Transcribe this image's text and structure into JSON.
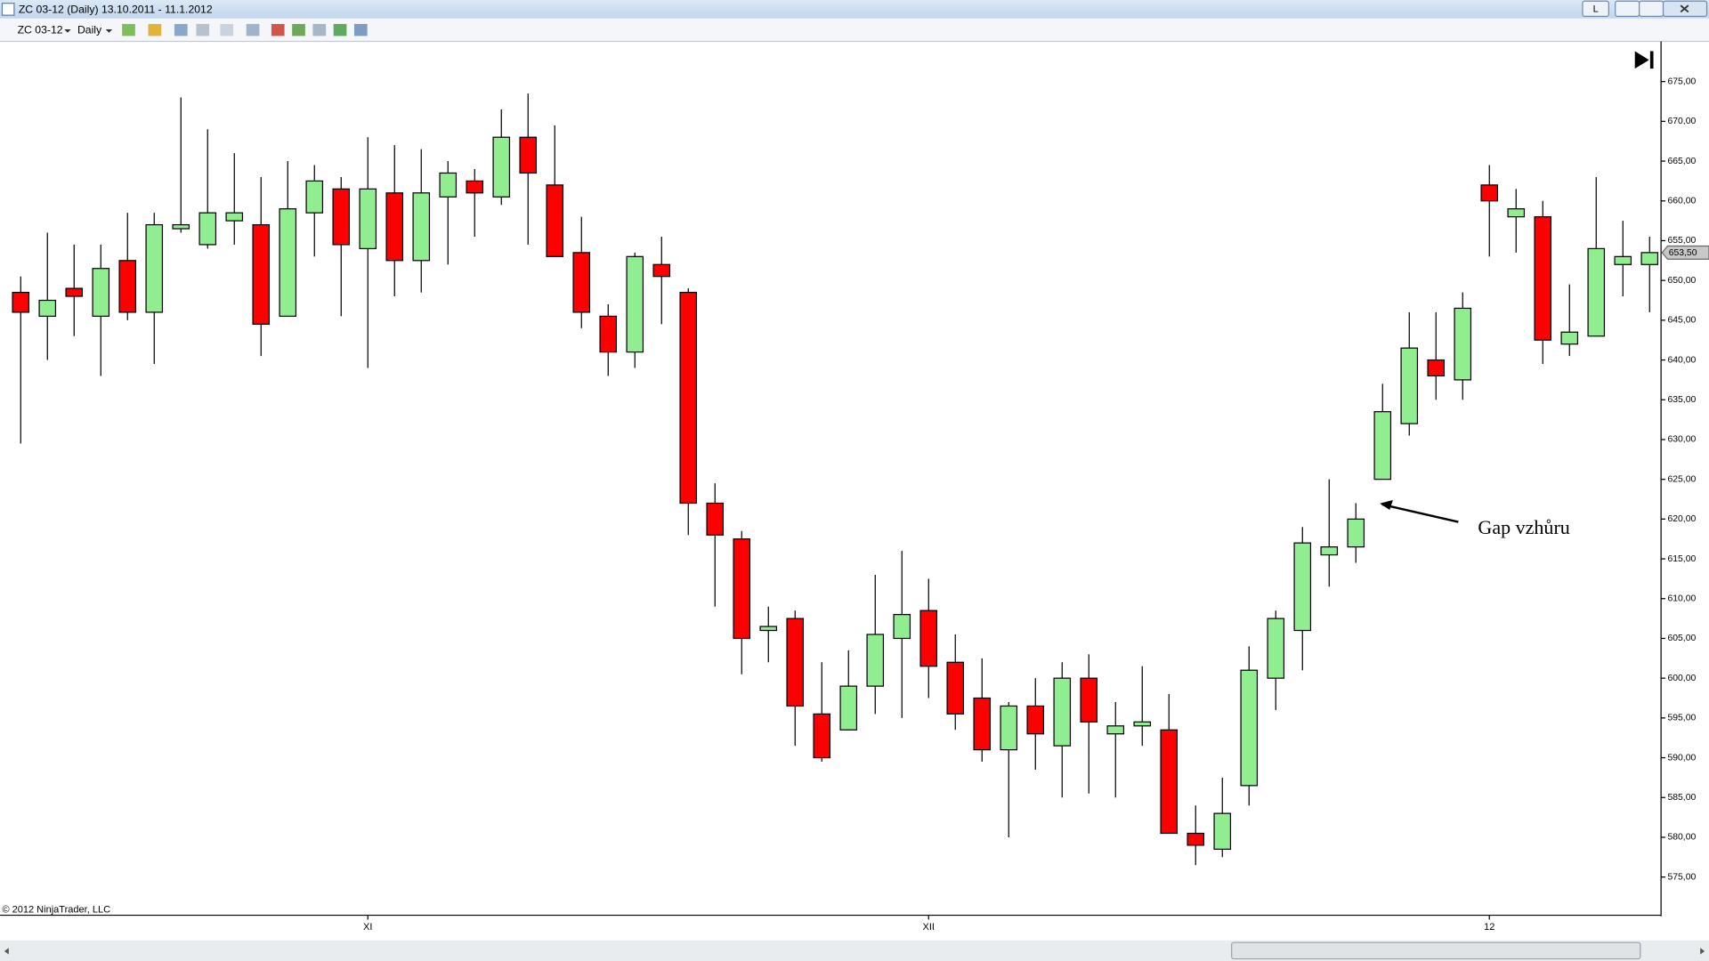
{
  "window": {
    "title": "ZC 03-12 (Daily)  13.10.2011 - 11.1.2012",
    "button": "L"
  },
  "toolbar": {
    "instrument": "ZC 03-12",
    "period": "Daily"
  },
  "copyright": "© 2012 NinjaTrader, LLC",
  "chart_data": {
    "type": "candlestick",
    "categories": [
      null,
      null,
      null,
      null,
      null,
      null,
      null,
      null,
      null,
      null,
      null,
      null,
      null,
      "XI",
      null,
      null,
      null,
      null,
      null,
      null,
      null,
      null,
      null,
      null,
      null,
      null,
      null,
      null,
      null,
      null,
      null,
      null,
      null,
      null,
      "XII",
      null,
      null,
      null,
      null,
      null,
      null,
      null,
      null,
      null,
      null,
      null,
      null,
      null,
      null,
      null,
      null,
      null,
      null,
      null,
      null,
      "12",
      null,
      null,
      null,
      null,
      null,
      null
    ],
    "open": [
      648.5,
      645.5,
      649,
      645.5,
      652.5,
      646,
      656.5,
      654.5,
      657.5,
      657,
      645.5,
      658.5,
      661.5,
      654,
      661,
      652.5,
      660.5,
      662.5,
      660.5,
      668,
      662,
      653.5,
      645.5,
      641,
      652,
      648.5,
      622,
      617.5,
      606,
      607.5,
      595.5,
      593.5,
      599,
      605,
      608.5,
      602,
      597.5,
      591,
      596.5,
      591.5,
      600,
      593,
      594,
      593.5,
      580.5,
      578.5,
      586.5,
      600,
      606,
      615.5,
      616.5,
      625,
      632,
      640,
      637.5,
      662,
      658,
      658,
      642,
      643,
      652,
      652
    ],
    "high": [
      650.5,
      656,
      654.5,
      654.5,
      658.5,
      658.5,
      673,
      669,
      666,
      663,
      665,
      664.5,
      663,
      668,
      667,
      666.5,
      665,
      664,
      671.5,
      673.5,
      669.5,
      658,
      647,
      653.5,
      655.5,
      649,
      624.5,
      618.5,
      609,
      608.5,
      602,
      603.5,
      613,
      616,
      612.5,
      605.5,
      602.5,
      597,
      600,
      602,
      603,
      597,
      601.5,
      598,
      584,
      587.5,
      604,
      608.5,
      619,
      625,
      622,
      637,
      646,
      646,
      648.5,
      664.5,
      661.5,
      660,
      649.5,
      663,
      657.5,
      655.5
    ],
    "low": [
      629.5,
      640,
      643,
      638,
      645,
      639.5,
      656,
      654,
      654.5,
      640.5,
      645.5,
      653,
      645.5,
      639,
      648,
      648.5,
      652,
      655.5,
      659.5,
      654.5,
      653,
      644,
      638,
      639,
      644.5,
      618,
      609,
      600.5,
      602,
      591.5,
      589.5,
      593.5,
      595.5,
      595,
      597.5,
      593.5,
      589.5,
      580,
      588.5,
      585,
      585.5,
      585,
      591.5,
      580.5,
      576.5,
      577.5,
      584,
      596,
      601,
      611.5,
      614.5,
      625,
      630.5,
      635,
      635,
      653,
      653.5,
      639.5,
      640.5,
      643,
      648,
      646
    ],
    "close": [
      646,
      647.5,
      648,
      651.5,
      646,
      657,
      657,
      658.5,
      658.5,
      644.5,
      659,
      662.5,
      654.5,
      661.5,
      652.5,
      661,
      663.5,
      661,
      668,
      663.5,
      653,
      646,
      641,
      653,
      650.5,
      622,
      618,
      605,
      606.5,
      596.5,
      590,
      599,
      605.5,
      608,
      601.5,
      595.5,
      591,
      596.5,
      593,
      600,
      594.5,
      594,
      594.5,
      580.5,
      579,
      583,
      601,
      607.5,
      617,
      616.5,
      620,
      633.5,
      641.5,
      638,
      646.5,
      660,
      659,
      642.5,
      643.5,
      654,
      653,
      653.5
    ],
    "up_color": "#90ee90",
    "down_color": "#ff0000",
    "ylim": [
      570.2,
      679.5
    ],
    "yticks": [
      {
        "value": 575,
        "label": "575,00"
      },
      {
        "value": 580,
        "label": "580,00"
      },
      {
        "value": 585,
        "label": "585,00"
      },
      {
        "value": 590,
        "label": "590,00"
      },
      {
        "value": 595,
        "label": "595,00"
      },
      {
        "value": 600,
        "label": "600,00"
      },
      {
        "value": 605,
        "label": "605,00"
      },
      {
        "value": 610,
        "label": "610,00"
      },
      {
        "value": 615,
        "label": "615,00"
      },
      {
        "value": 620,
        "label": "620,00"
      },
      {
        "value": 625,
        "label": "625,00"
      },
      {
        "value": 630,
        "label": "630,00"
      },
      {
        "value": 635,
        "label": "635,00"
      },
      {
        "value": 640,
        "label": "640,00"
      },
      {
        "value": 645,
        "label": "645,00"
      },
      {
        "value": 650,
        "label": "650,00"
      },
      {
        "value": 655,
        "label": "655,00"
      },
      {
        "value": 660,
        "label": "660,00"
      },
      {
        "value": 665,
        "label": "665,00"
      },
      {
        "value": 670,
        "label": "670,00"
      },
      {
        "value": 675,
        "label": "675,00"
      }
    ],
    "last_price": 653.5,
    "last_price_label": "653,50",
    "annotation": "Gap vzhůru"
  }
}
